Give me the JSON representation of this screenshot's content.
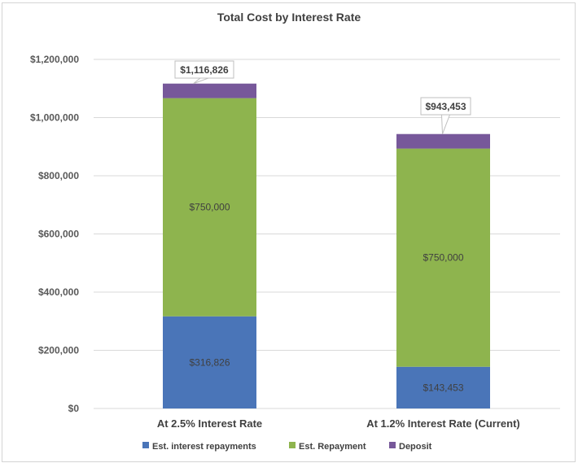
{
  "chart_data": {
    "type": "bar",
    "stacked": true,
    "title": "Total Cost by Interest Rate",
    "xlabel": "",
    "ylabel": "",
    "ylim": [
      0,
      1200000
    ],
    "yticks": [
      0,
      200000,
      400000,
      600000,
      800000,
      1000000,
      1200000
    ],
    "ytick_labels": [
      "$0",
      "$200,000",
      "$400,000",
      "$600,000",
      "$800,000",
      "$1,000,000",
      "$1,200,000"
    ],
    "grid": true,
    "legend_position": "bottom",
    "categories": [
      "At 2.5% Interest Rate",
      "At 1.2% Interest Rate (Current)"
    ],
    "series": [
      {
        "name": "Est. interest repayments",
        "color": "#4a75b8",
        "values": [
          316826,
          143453
        ],
        "labels": [
          "$316,826",
          "$143,453"
        ]
      },
      {
        "name": "Est. Repayment",
        "color": "#8eb44e",
        "values": [
          750000,
          750000
        ],
        "labels": [
          "$750,000",
          "$750,000"
        ]
      },
      {
        "name": "Deposit",
        "color": "#77589a",
        "values": [
          50000,
          50000
        ],
        "labels": [
          null,
          null
        ]
      }
    ],
    "totals": [
      1116826,
      943453
    ],
    "total_labels": [
      "$1,116,826",
      "$943,453"
    ]
  }
}
